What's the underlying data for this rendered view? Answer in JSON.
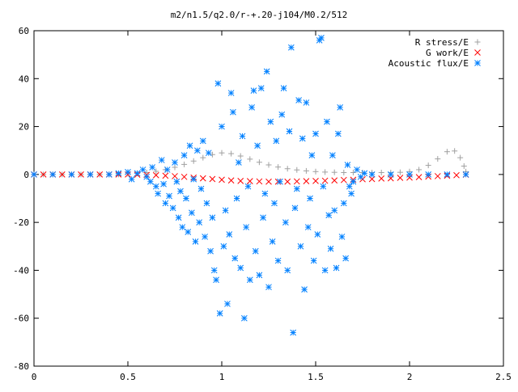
{
  "chart_data": {
    "type": "scatter",
    "title": "m2/n1.5/q2.0/r-+.20-j104/M0.2/512",
    "xlabel": "",
    "ylabel": "",
    "xlim": [
      0,
      2.5
    ],
    "ylim": [
      -80,
      60
    ],
    "x_ticks": [
      0,
      0.5,
      1,
      1.5,
      2,
      2.5
    ],
    "x_tick_labels": [
      "0",
      "0.5",
      "1",
      "1.5",
      "2",
      "2.5"
    ],
    "y_ticks": [
      -80,
      -60,
      -40,
      -20,
      0,
      20,
      40,
      60
    ],
    "y_tick_labels": [
      "-80",
      "-60",
      "-40",
      "-20",
      "0",
      "20",
      "40",
      "60"
    ],
    "grid": false,
    "legend_position": "top-right",
    "series": [
      {
        "name": "R stress/E",
        "marker": "+",
        "color": "#a0a0a0",
        "points": [
          [
            0.0,
            0
          ],
          [
            0.05,
            0
          ],
          [
            0.1,
            0
          ],
          [
            0.15,
            0
          ],
          [
            0.2,
            0
          ],
          [
            0.25,
            0
          ],
          [
            0.3,
            0
          ],
          [
            0.35,
            0
          ],
          [
            0.4,
            0
          ],
          [
            0.45,
            0
          ],
          [
            0.5,
            0.3
          ],
          [
            0.55,
            0.5
          ],
          [
            0.6,
            0.8
          ],
          [
            0.65,
            1.3
          ],
          [
            0.7,
            2.0
          ],
          [
            0.75,
            3.0
          ],
          [
            0.8,
            4.2
          ],
          [
            0.85,
            5.6
          ],
          [
            0.9,
            7.0
          ],
          [
            0.95,
            8.3
          ],
          [
            1.0,
            9.0
          ],
          [
            1.05,
            8.7
          ],
          [
            1.1,
            7.7
          ],
          [
            1.15,
            6.4
          ],
          [
            1.2,
            5.1
          ],
          [
            1.25,
            4.0
          ],
          [
            1.3,
            3.1
          ],
          [
            1.35,
            2.4
          ],
          [
            1.4,
            1.9
          ],
          [
            1.45,
            1.5
          ],
          [
            1.5,
            1.2
          ],
          [
            1.55,
            1.0
          ],
          [
            1.6,
            0.9
          ],
          [
            1.65,
            0.8
          ],
          [
            1.7,
            0.8
          ],
          [
            1.75,
            0.8
          ],
          [
            1.8,
            0.8
          ],
          [
            1.85,
            0.8
          ],
          [
            1.9,
            0.8
          ],
          [
            1.95,
            0.9
          ],
          [
            2.0,
            1.2
          ],
          [
            2.05,
            2.0
          ],
          [
            2.1,
            3.8
          ],
          [
            2.15,
            6.5
          ],
          [
            2.2,
            9.5
          ],
          [
            2.24,
            9.8
          ],
          [
            2.27,
            7.0
          ],
          [
            2.29,
            3.5
          ],
          [
            2.3,
            1.2
          ]
        ]
      },
      {
        "name": "G work/E",
        "marker": "x",
        "color": "#ff0000",
        "points": [
          [
            0.0,
            0
          ],
          [
            0.05,
            0
          ],
          [
            0.1,
            0
          ],
          [
            0.15,
            0
          ],
          [
            0.2,
            0
          ],
          [
            0.25,
            0
          ],
          [
            0.3,
            0
          ],
          [
            0.35,
            0
          ],
          [
            0.4,
            0
          ],
          [
            0.45,
            0
          ],
          [
            0.5,
            0
          ],
          [
            0.55,
            -0.1
          ],
          [
            0.6,
            -0.2
          ],
          [
            0.65,
            -0.3
          ],
          [
            0.7,
            -0.5
          ],
          [
            0.75,
            -0.7
          ],
          [
            0.8,
            -1.0
          ],
          [
            0.85,
            -1.3
          ],
          [
            0.9,
            -1.6
          ],
          [
            0.95,
            -1.9
          ],
          [
            1.0,
            -2.2
          ],
          [
            1.05,
            -2.5
          ],
          [
            1.1,
            -2.7
          ],
          [
            1.15,
            -2.8
          ],
          [
            1.2,
            -2.9
          ],
          [
            1.25,
            -3.0
          ],
          [
            1.3,
            -3.0
          ],
          [
            1.35,
            -3.0
          ],
          [
            1.4,
            -2.9
          ],
          [
            1.45,
            -2.8
          ],
          [
            1.5,
            -2.7
          ],
          [
            1.55,
            -2.6
          ],
          [
            1.6,
            -2.5
          ],
          [
            1.65,
            -2.3
          ],
          [
            1.7,
            -2.2
          ],
          [
            1.75,
            -2.0
          ],
          [
            1.8,
            -1.9
          ],
          [
            1.85,
            -1.7
          ],
          [
            1.9,
            -1.6
          ],
          [
            1.95,
            -1.4
          ],
          [
            2.0,
            -1.3
          ],
          [
            2.05,
            -1.1
          ],
          [
            2.1,
            -0.9
          ],
          [
            2.15,
            -0.7
          ],
          [
            2.2,
            -0.5
          ],
          [
            2.25,
            -0.3
          ],
          [
            2.3,
            -0.1
          ]
        ]
      },
      {
        "name": "Acoustic flux/E",
        "marker": "*",
        "color": "#0080ff",
        "points": [
          [
            0.0,
            0
          ],
          [
            0.1,
            0
          ],
          [
            0.2,
            0
          ],
          [
            0.3,
            0
          ],
          [
            0.4,
            0
          ],
          [
            0.45,
            0.5
          ],
          [
            0.5,
            1
          ],
          [
            0.52,
            -2
          ],
          [
            0.55,
            0.5
          ],
          [
            0.58,
            2
          ],
          [
            0.6,
            -1
          ],
          [
            0.62,
            -3
          ],
          [
            0.63,
            3
          ],
          [
            0.65,
            -5
          ],
          [
            0.66,
            -8
          ],
          [
            0.68,
            6
          ],
          [
            0.69,
            -4
          ],
          [
            0.7,
            -12
          ],
          [
            0.71,
            2
          ],
          [
            0.72,
            -9
          ],
          [
            0.74,
            -14
          ],
          [
            0.75,
            5
          ],
          [
            0.76,
            -3
          ],
          [
            0.77,
            -18
          ],
          [
            0.78,
            -7
          ],
          [
            0.79,
            -22
          ],
          [
            0.8,
            8
          ],
          [
            0.81,
            -10
          ],
          [
            0.82,
            -24
          ],
          [
            0.83,
            12
          ],
          [
            0.84,
            -16
          ],
          [
            0.85,
            -2
          ],
          [
            0.86,
            -28
          ],
          [
            0.87,
            10
          ],
          [
            0.88,
            -20
          ],
          [
            0.89,
            -6
          ],
          [
            0.9,
            14
          ],
          [
            0.91,
            -26
          ],
          [
            0.92,
            -12
          ],
          [
            0.93,
            9
          ],
          [
            0.94,
            -32
          ],
          [
            0.95,
            -18
          ],
          [
            0.96,
            -40
          ],
          [
            0.97,
            -44
          ],
          [
            0.98,
            38
          ],
          [
            0.99,
            -58
          ],
          [
            1.0,
            20
          ],
          [
            1.01,
            -30
          ],
          [
            1.02,
            -15
          ],
          [
            1.03,
            -54
          ],
          [
            1.04,
            -25
          ],
          [
            1.05,
            34
          ],
          [
            1.06,
            26
          ],
          [
            1.07,
            -35
          ],
          [
            1.08,
            -10
          ],
          [
            1.09,
            5
          ],
          [
            1.1,
            -39
          ],
          [
            1.11,
            16
          ],
          [
            1.12,
            -60
          ],
          [
            1.13,
            -22
          ],
          [
            1.14,
            -5
          ],
          [
            1.15,
            -44
          ],
          [
            1.16,
            28
          ],
          [
            1.17,
            35
          ],
          [
            1.18,
            -32
          ],
          [
            1.19,
            12
          ],
          [
            1.2,
            -42
          ],
          [
            1.21,
            36
          ],
          [
            1.22,
            -18
          ],
          [
            1.23,
            -8
          ],
          [
            1.24,
            43
          ],
          [
            1.25,
            -47
          ],
          [
            1.26,
            22
          ],
          [
            1.27,
            -28
          ],
          [
            1.28,
            -12
          ],
          [
            1.29,
            14
          ],
          [
            1.3,
            -36
          ],
          [
            1.31,
            -3
          ],
          [
            1.32,
            25
          ],
          [
            1.33,
            36
          ],
          [
            1.34,
            -20
          ],
          [
            1.35,
            -40
          ],
          [
            1.36,
            18
          ],
          [
            1.37,
            53
          ],
          [
            1.38,
            -66
          ],
          [
            1.39,
            -14
          ],
          [
            1.4,
            -6
          ],
          [
            1.41,
            31
          ],
          [
            1.42,
            -30
          ],
          [
            1.43,
            15
          ],
          [
            1.44,
            -48
          ],
          [
            1.45,
            30
          ],
          [
            1.46,
            -22
          ],
          [
            1.47,
            -10
          ],
          [
            1.48,
            8
          ],
          [
            1.49,
            -36
          ],
          [
            1.5,
            17
          ],
          [
            1.51,
            -25
          ],
          [
            1.52,
            56
          ],
          [
            1.53,
            57
          ],
          [
            1.54,
            -5
          ],
          [
            1.55,
            -40
          ],
          [
            1.56,
            22
          ],
          [
            1.57,
            -17
          ],
          [
            1.58,
            -31
          ],
          [
            1.59,
            8
          ],
          [
            1.6,
            -15
          ],
          [
            1.61,
            -39
          ],
          [
            1.62,
            17
          ],
          [
            1.63,
            28
          ],
          [
            1.64,
            -26
          ],
          [
            1.65,
            -12
          ],
          [
            1.66,
            -35
          ],
          [
            1.67,
            4
          ],
          [
            1.68,
            -5
          ],
          [
            1.69,
            -8
          ],
          [
            1.7,
            -3
          ],
          [
            1.72,
            2
          ],
          [
            1.74,
            -1
          ],
          [
            1.76,
            0.5
          ],
          [
            1.8,
            0
          ],
          [
            1.9,
            0
          ],
          [
            2.0,
            0
          ],
          [
            2.1,
            0
          ],
          [
            2.2,
            0
          ],
          [
            2.3,
            0
          ]
        ]
      }
    ]
  }
}
